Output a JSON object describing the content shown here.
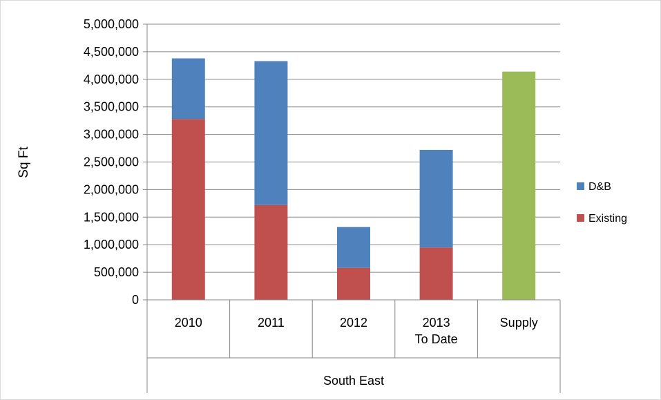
{
  "chart_data": {
    "type": "bar",
    "stacked": true,
    "ylabel": "Sq Ft",
    "ylim": [
      0,
      5000000
    ],
    "yticks": [
      0,
      500000,
      1000000,
      1500000,
      2000000,
      2500000,
      3000000,
      3500000,
      4000000,
      4500000,
      5000000
    ],
    "ytick_labels": [
      "0",
      "500,000",
      "1,000,000",
      "1,500,000",
      "2,000,000",
      "2,500,000",
      "3,000,000",
      "3,500,000",
      "4,000,000",
      "4,500,000",
      "5,000,000"
    ],
    "categories": [
      {
        "lines": [
          "2010"
        ]
      },
      {
        "lines": [
          "2011"
        ]
      },
      {
        "lines": [
          "2012"
        ]
      },
      {
        "lines": [
          "2013",
          "To Date"
        ]
      },
      {
        "lines": [
          "Supply"
        ]
      }
    ],
    "group_label": "South East",
    "grid": true,
    "legend_position": "right",
    "series": [
      {
        "name": "Existing",
        "color": "#c0504d",
        "values": [
          3280000,
          1720000,
          580000,
          950000,
          0
        ]
      },
      {
        "name": "D&B",
        "color": "#4f81bd",
        "values": [
          1100000,
          2610000,
          740000,
          1770000,
          0
        ]
      },
      {
        "name": "",
        "color": "#9bbb59",
        "values": [
          0,
          0,
          0,
          0,
          4140000
        ]
      }
    ],
    "legend": [
      {
        "name": "D&B",
        "color": "#4f81bd"
      },
      {
        "name": "Existing",
        "color": "#c0504d"
      }
    ]
  }
}
